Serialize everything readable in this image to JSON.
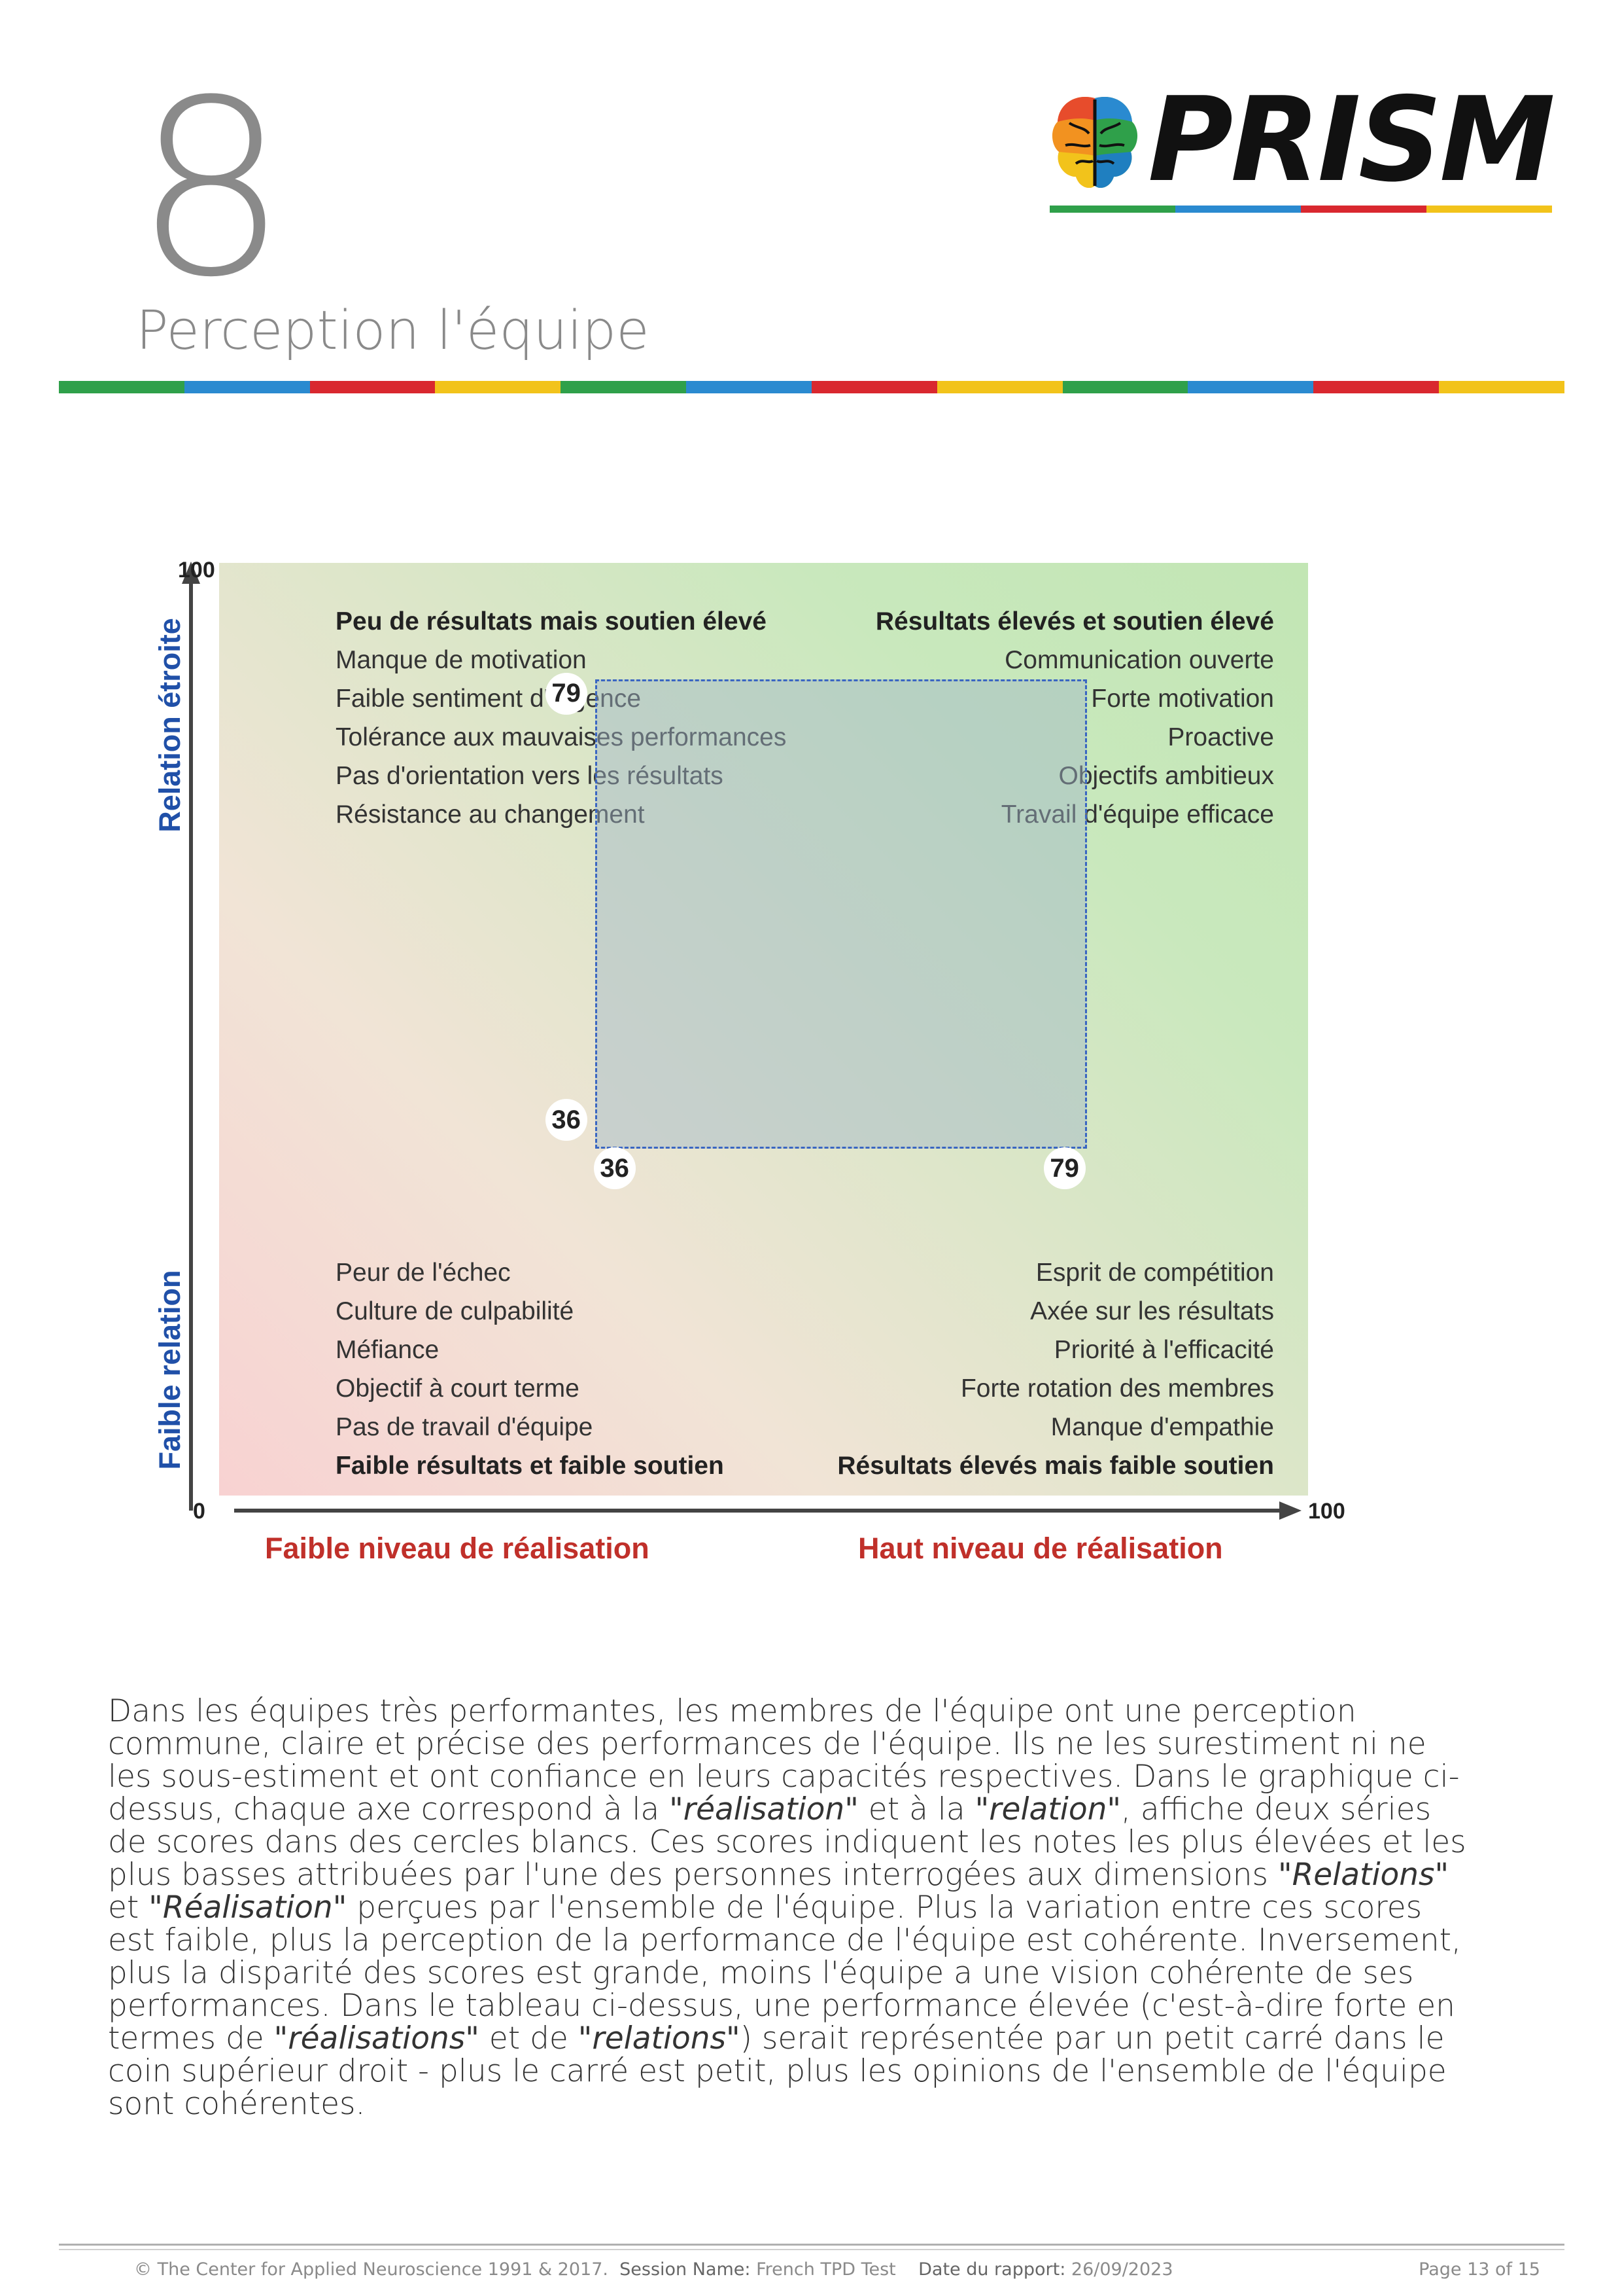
{
  "header": {
    "section_number": "8",
    "section_title": "Perception l'équipe",
    "logo_text": "PRISM"
  },
  "colors": {
    "stripe": [
      "#2fa04a",
      "#2a8ad0",
      "#d9282f",
      "#f2c31b"
    ],
    "axis_y_title": "#2050a8",
    "axis_x_title": "#c0302a",
    "score_box_border": "#3a66c2"
  },
  "chart_data": {
    "type": "quadrant-range",
    "xlim": [
      0,
      100
    ],
    "ylim": [
      0,
      100
    ],
    "x_axis_ticks": [
      "0",
      "100"
    ],
    "y_axis_ticks": [
      "100"
    ],
    "x_axis_titles": [
      "Faible niveau de réalisation",
      "Haut niveau de réalisation"
    ],
    "y_axis_titles": [
      "Relation étroite",
      "Faible relation"
    ],
    "x_range": {
      "low": 36,
      "high": 79
    },
    "y_range": {
      "low": 36,
      "high": 79
    },
    "score_labels": {
      "x_low": "36",
      "x_high": "79",
      "y_low": "36",
      "y_high": "79"
    },
    "quadrants": {
      "top_left": {
        "title": "Peu de résultats mais soutien élevé",
        "items": [
          "Manque de motivation",
          "Faible sentiment d'urgence",
          "Tolérance aux mauvaises performances",
          "Pas d'orientation vers les résultats",
          "Résistance au changement"
        ]
      },
      "top_right": {
        "title": "Résultats élevés et soutien élevé",
        "items": [
          "Communication ouverte",
          "Forte motivation",
          "Proactive",
          "Objectifs ambitieux",
          "Travail d'équipe efficace"
        ]
      },
      "bottom_left": {
        "title": "Faible résultats et faible soutien",
        "items": [
          "Peur de l'échec",
          "Culture de culpabilité",
          "Méfiance",
          "Objectif à court terme",
          "Pas de travail d'équipe"
        ]
      },
      "bottom_right": {
        "title": "Résultats élevés mais faible soutien",
        "items": [
          "Esprit de compétition",
          "Axée sur les résultats",
          "Priorité à l'efficacité",
          "Forte rotation des membres",
          "Manque d'empathie"
        ]
      }
    }
  },
  "body": {
    "p1": "Dans les équipes très performantes, les membres de l'équipe ont une perception commune, claire et précise des performances de l'équipe. Ils ne les surestiment ni ne les sous-estiment et ont confiance en leurs capacités respectives. Dans le graphique ci-dessus, chaque axe correspond à la ",
    "em1": "\"réalisation\"",
    "p2": " et à la ",
    "em2": "\"relation\"",
    "p3": ", affiche deux séries de scores dans des cercles blancs. Ces scores indiquent les notes les plus élevées et les plus basses attribuées par l'une des personnes interrogées aux dimensions ",
    "em3": "\"Relations\"",
    "p4": " et ",
    "em4": "\"Réalisation\"",
    "p5": " perçues par l'ensemble de l'équipe. Plus la variation entre ces scores est faible, plus la perception de la performance de l'équipe est cohérente. Inversement, plus la disparité des scores est grande, moins l'équipe a une vision cohérente de ses performances. Dans le tableau ci-dessus, une performance élevée (c'est-à-dire forte en termes de ",
    "em5": "\"réalisations\"",
    "p6": " et de ",
    "em6": "\"relations\"",
    "p7": ") serait représentée par un petit carré dans le coin supérieur droit - plus le carré est petit, plus les opinions de l'ensemble de l'équipe sont cohérentes."
  },
  "footer": {
    "copyright": "© The Center for Applied Neuroscience 1991 & 2017.",
    "session_label": "Session Name:",
    "session_value": "French TPD Test",
    "date_label": "Date du rapport:",
    "date_value": "26/09/2023",
    "page": "Page 13 of 15"
  }
}
